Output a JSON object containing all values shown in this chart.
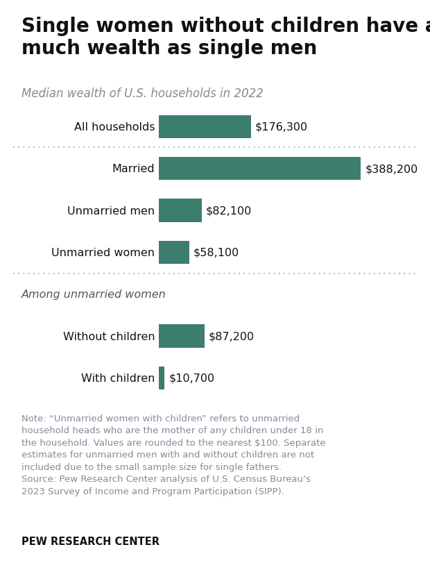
{
  "title": "Single women without children have as\nmuch wealth as single men",
  "subtitle": "Median wealth of U.S. households in 2022",
  "categories": [
    "All households",
    "Married",
    "Unmarried men",
    "Unmarried women",
    "Among unmarried women",
    "Without children",
    "With children"
  ],
  "bar_categories": [
    "All households",
    "Married",
    "Unmarried men",
    "Unmarried women",
    "Without children",
    "With children"
  ],
  "values": [
    176300,
    388200,
    82100,
    58100,
    87200,
    10700
  ],
  "labels": [
    "$176,300",
    "$388,200",
    "$82,100",
    "$58,100",
    "$87,200",
    "$10,700"
  ],
  "bar_color": "#3d7d6e",
  "section_label": "Among unmarried women",
  "note_text": "Note: “Unmarried women with children” refers to unmarried\nhousehold heads who are the mother of any children under 18 in\nthe household. Values are rounded to the nearest $100. Separate\nestimates for unmarried men with and without children are not\nincluded due to the small sample size for single fathers.\nSource: Pew Research Center analysis of U.S. Census Bureau’s\n2023 Survey of Income and Program Participation (SIPP).",
  "source_label": "PEW RESEARCH CENTER",
  "title_fontsize": 20,
  "subtitle_fontsize": 12,
  "label_fontsize": 11.5,
  "note_fontsize": 9.5,
  "source_fontsize": 10.5,
  "background_color": "#ffffff",
  "max_value": 430000,
  "title_color": "#111111",
  "subtitle_color": "#888899",
  "category_color": "#111111",
  "label_color": "#111111",
  "note_color": "#888899",
  "sep_color": "#aaaaaa"
}
